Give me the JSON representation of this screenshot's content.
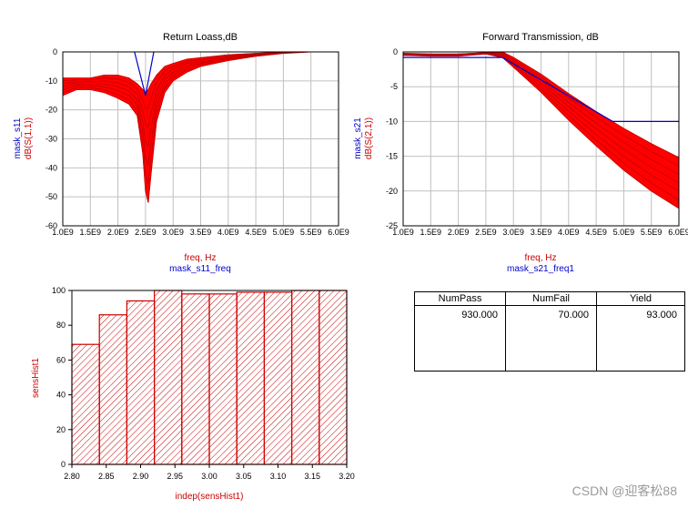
{
  "chart_data": [
    {
      "id": "s11",
      "type": "line",
      "title": "Return Loass,dB",
      "xlabel": [
        "freq, Hz",
        "mask_s11_freq"
      ],
      "ylabel": [
        "mask_s11",
        "dB(S(1,1))"
      ],
      "xlim": [
        1000000000.0,
        6000000000.0
      ],
      "ylim": [
        -60,
        0
      ],
      "xticks": [
        "1.0E9",
        "1.5E9",
        "2.0E9",
        "2.5E9",
        "3.0E9",
        "3.5E9",
        "4.0E9",
        "4.5E9",
        "5.0E9",
        "5.5E9",
        "6.0E9"
      ],
      "yticks": [
        0,
        -10,
        -20,
        -30,
        -40,
        -50,
        -60
      ],
      "envelope_x": [
        1000000000.0,
        1250000000.0,
        1500000000.0,
        1750000000.0,
        2000000000.0,
        2200000000.0,
        2350000000.0,
        2450000000.0,
        2500000000.0,
        2550000000.0,
        2600000000.0,
        2700000000.0,
        2850000000.0,
        3000000000.0,
        3250000000.0,
        3500000000.0,
        4000000000.0,
        4500000000.0,
        5000000000.0,
        5500000000.0,
        6000000000.0
      ],
      "envelope_upper": [
        -9,
        -9,
        -9,
        -8,
        -8,
        -9,
        -11,
        -13,
        -14,
        -13,
        -11,
        -8,
        -5,
        -4,
        -2.5,
        -2,
        -1,
        -0.5,
        0,
        0,
        0
      ],
      "envelope_lower": [
        -15,
        -13,
        -13,
        -14,
        -16,
        -18,
        -22,
        -35,
        -48,
        -52,
        -42,
        -24,
        -14,
        -10,
        -7,
        -5,
        -3,
        -1.5,
        -0.5,
        0,
        0
      ],
      "mask": {
        "x": [
          2300000000.0,
          2500000000.0,
          2650000000.0
        ],
        "y": [
          0,
          -15,
          0
        ]
      }
    },
    {
      "id": "s21",
      "type": "line",
      "title": "Forward Transmission, dB",
      "xlabel": [
        "freq, Hz",
        "mask_s21_freq1"
      ],
      "ylabel": [
        "mask_s21",
        "dB(S(2,1))"
      ],
      "xlim": [
        1000000000.0,
        6000000000.0
      ],
      "ylim": [
        -25,
        0
      ],
      "xticks": [
        "1.0E9",
        "1.5E9",
        "2.0E9",
        "2.5E9",
        "3.0E9",
        "3.5E9",
        "4.0E9",
        "4.5E9",
        "5.0E9",
        "5.5E9",
        "6.0E9"
      ],
      "yticks": [
        0,
        -5,
        -10,
        -15,
        -20,
        -25
      ],
      "envelope_x": [
        1000000000.0,
        1500000000.0,
        2000000000.0,
        2500000000.0,
        2800000000.0,
        3000000000.0,
        3500000000.0,
        4000000000.0,
        4500000000.0,
        5000000000.0,
        5500000000.0,
        6000000000.0
      ],
      "envelope_upper": [
        -0.2,
        -0.3,
        -0.3,
        -0.1,
        0,
        -0.8,
        -3.2,
        -6.0,
        -8.6,
        -11.0,
        -13.2,
        -15.2
      ],
      "envelope_lower": [
        -0.5,
        -0.6,
        -0.6,
        -0.3,
        -0.8,
        -2.2,
        -5.8,
        -9.8,
        -13.5,
        -17.0,
        -20.0,
        -22.5
      ],
      "mask": {
        "x": [
          1000000000.0,
          2800000000.0,
          4800000000.0,
          6000000000.0
        ],
        "y": [
          -0.8,
          -0.8,
          -10,
          -10
        ]
      }
    },
    {
      "id": "hist",
      "type": "bar",
      "xlabel": "indep(sensHist1)",
      "ylabel": "sensHist1",
      "xlim": [
        2.8,
        3.2
      ],
      "ylim": [
        0,
        100
      ],
      "xticks": [
        "2.80",
        "2.85",
        "2.90",
        "2.95",
        "3.00",
        "3.05",
        "3.10",
        "3.15",
        "3.20"
      ],
      "yticks": [
        0,
        20,
        40,
        60,
        80,
        100
      ],
      "bin_edges": [
        2.8,
        2.84,
        2.88,
        2.92,
        2.96,
        3.0,
        3.04,
        3.08,
        3.12,
        3.16,
        3.2
      ],
      "values": [
        69,
        86,
        94,
        100,
        98,
        98,
        99,
        99,
        100,
        100
      ]
    }
  ],
  "yield_table": {
    "headers": [
      "NumPass",
      "NumFail",
      "Yield"
    ],
    "values": [
      "930.000",
      "70.000",
      "93.000"
    ]
  },
  "watermark": "CSDN @迎客松88",
  "colors": {
    "trace": "#ff0000",
    "mask": "#0000cc",
    "grid": "#c0c0c0",
    "hatch": "#cc0000"
  }
}
